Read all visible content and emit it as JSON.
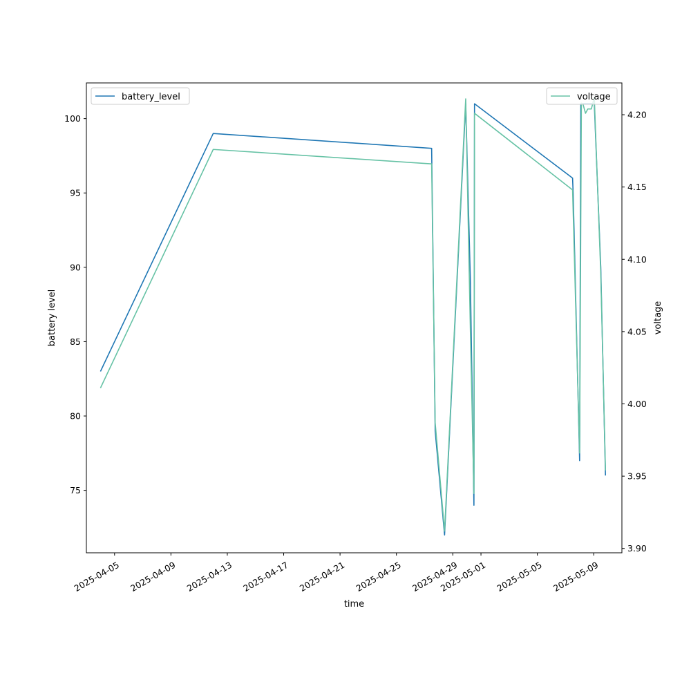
{
  "chart_data": {
    "type": "line",
    "xlabel": "time",
    "ylabel_left": "battery level",
    "ylabel_right": "voltage",
    "x_range": [
      "2025-04-03",
      "2025-05-11"
    ],
    "x_ticks": [
      "2025-04-05",
      "2025-04-09",
      "2025-04-13",
      "2025-04-17",
      "2025-04-21",
      "2025-04-25",
      "2025-04-29",
      "2025-05-01",
      "2025-05-05",
      "2025-05-09"
    ],
    "ylim_left": [
      70.8,
      102.4
    ],
    "yticks_left": [
      75,
      80,
      85,
      90,
      95,
      100
    ],
    "ylim_right": [
      3.897,
      4.222
    ],
    "yticks_right": [
      3.9,
      3.95,
      4.0,
      4.05,
      4.1,
      4.15,
      4.2
    ],
    "grid": false,
    "series": [
      {
        "name": "battery_level",
        "axis": "left",
        "color": "#1f77b4",
        "legend_position": "upper-left",
        "points": [
          [
            "2025-04-04 00:00",
            83
          ],
          [
            "2025-04-12 00:00",
            99
          ],
          [
            "2025-04-27 12:00",
            98
          ],
          [
            "2025-04-27 18:00",
            79
          ],
          [
            "2025-04-28 10:00",
            72
          ],
          [
            "2025-04-29 22:00",
            101
          ],
          [
            "2025-04-30 06:00",
            89
          ],
          [
            "2025-04-30 12:00",
            74
          ],
          [
            "2025-04-30 13:00",
            101
          ],
          [
            "2025-05-07 12:00",
            96
          ],
          [
            "2025-05-07 13:00",
            95
          ],
          [
            "2025-05-08 00:00",
            77
          ],
          [
            "2025-05-08 02:00",
            101
          ],
          [
            "2025-05-08 18:00",
            101
          ],
          [
            "2025-05-09 01:00",
            101
          ],
          [
            "2025-05-09 12:00",
            90
          ],
          [
            "2025-05-09 20:00",
            76
          ]
        ]
      },
      {
        "name": "voltage",
        "axis": "right",
        "color": "#66c2a5",
        "legend_position": "upper-right",
        "points": [
          [
            "2025-04-04 00:00",
            4.011
          ],
          [
            "2025-04-12 00:00",
            4.176
          ],
          [
            "2025-04-27 12:00",
            4.166
          ],
          [
            "2025-04-27 18:00",
            3.987
          ],
          [
            "2025-04-28 10:00",
            3.912
          ],
          [
            "2025-04-29 22:00",
            4.211
          ],
          [
            "2025-04-30 06:00",
            4.05
          ],
          [
            "2025-04-30 12:00",
            3.938
          ],
          [
            "2025-04-30 13:00",
            4.201
          ],
          [
            "2025-05-07 12:00",
            4.148
          ],
          [
            "2025-05-08 00:00",
            3.966
          ],
          [
            "2025-05-08 03:00",
            4.208
          ],
          [
            "2025-05-08 06:00",
            4.207
          ],
          [
            "2025-05-08 10:00",
            4.201
          ],
          [
            "2025-05-08 14:00",
            4.204
          ],
          [
            "2025-05-08 20:00",
            4.204
          ],
          [
            "2025-05-09 01:00",
            4.212
          ],
          [
            "2025-05-09 12:00",
            4.09
          ],
          [
            "2025-05-09 20:00",
            3.954
          ]
        ]
      }
    ]
  }
}
